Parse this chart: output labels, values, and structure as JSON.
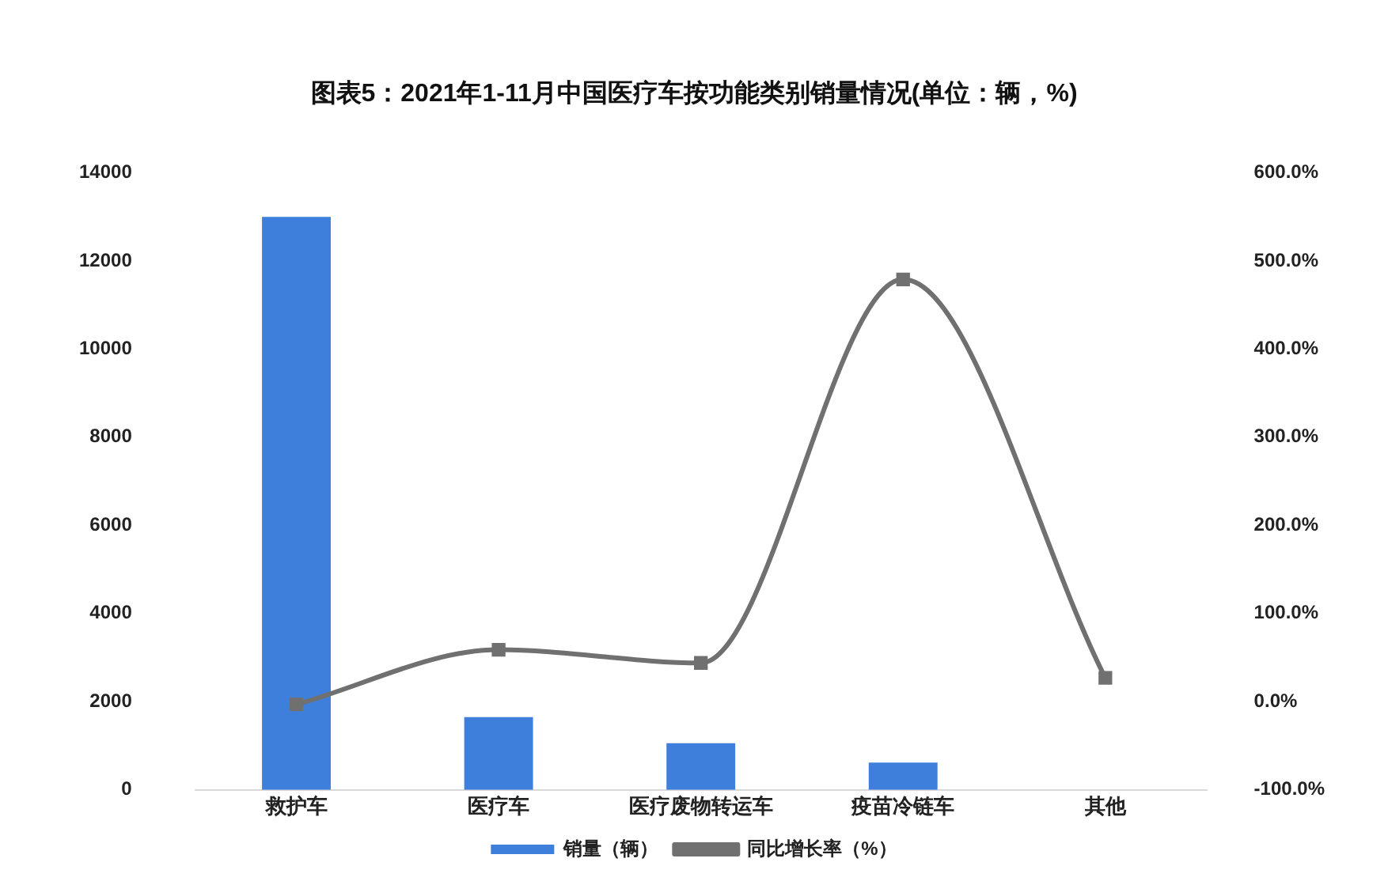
{
  "chart_data": {
    "type": "bar",
    "title": "图表5：2021年1-11月中国医疗车按功能类别销量情况(单位：辆，%)",
    "categories": [
      "救护车",
      "医疗车",
      "医疗废物转运车",
      "疫苗冷链车",
      "其他"
    ],
    "series": [
      {
        "name": "销量（辆）",
        "color": "#3f7fdc",
        "values": [
          13000,
          1650,
          1060,
          620,
          null
        ]
      },
      {
        "name": "同比增长率（%）",
        "type": "line",
        "axis": "y2",
        "color": "#707070",
        "values": [
          -3,
          59,
          44,
          479,
          27
        ]
      }
    ],
    "ylim": [
      0,
      14000
    ],
    "yticks": [
      0,
      2000,
      4000,
      6000,
      8000,
      10000,
      12000,
      14000
    ],
    "y2lim": [
      -100,
      600
    ],
    "y2ticks": [
      {
        "value": -100,
        "label": "-100.0%"
      },
      {
        "value": 0,
        "label": "0.0%"
      },
      {
        "value": 100,
        "label": "100.0%"
      },
      {
        "value": 200,
        "label": "200.0%"
      },
      {
        "value": 300,
        "label": "300.0%"
      },
      {
        "value": 400,
        "label": "400.0%"
      },
      {
        "value": 500,
        "label": "500.0%"
      },
      {
        "value": 600,
        "label": "600.0%"
      }
    ],
    "grid": false,
    "legend": "bottom",
    "marker": "square",
    "line_style": "solid"
  }
}
